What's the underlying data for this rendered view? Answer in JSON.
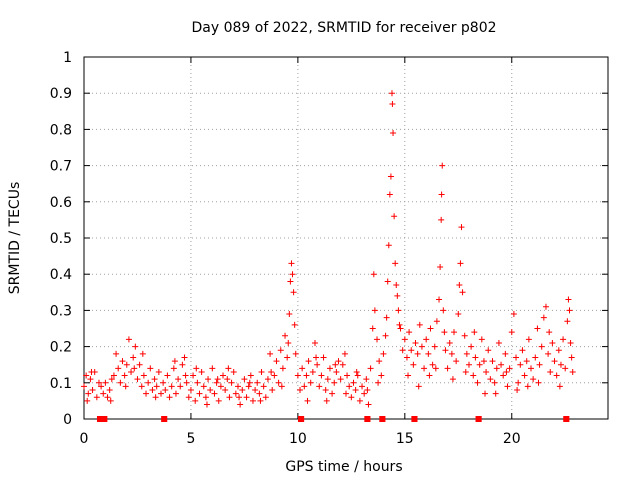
{
  "chart_data": {
    "type": "scatter",
    "title": "Day 089 of 2022, SRMTID for receiver p802",
    "xlabel": "GPS time / hours",
    "ylabel": "SRMTID / TECUs",
    "xlim": [
      0,
      24.5
    ],
    "ylim": [
      0,
      1
    ],
    "grid": true,
    "x_ticks": [
      0,
      5,
      10,
      15,
      20
    ],
    "x_tick_labels": [
      "0",
      "5",
      "10",
      "15",
      "20"
    ],
    "y_ticks": [
      0,
      0.1,
      0.2,
      0.3,
      0.4,
      0.5,
      0.6,
      0.7,
      0.8,
      0.9,
      1
    ],
    "y_tick_labels": [
      "0",
      "0.1",
      "0.2",
      "0.3",
      "0.4",
      "0.5",
      "0.6",
      "0.7",
      "0.8",
      "0.9",
      "1"
    ],
    "marker": "+",
    "color": "#ff0000",
    "baseline_segments": [
      {
        "hours": [
          0.7,
          1.0
        ]
      },
      {
        "hours": [
          3.7,
          3.8
        ]
      },
      {
        "hours": [
          10.1,
          10.2
        ]
      },
      {
        "hours": [
          13.2,
          13.3
        ]
      },
      {
        "hours": [
          13.9,
          14.0
        ]
      },
      {
        "hours": [
          15.4,
          15.5
        ]
      },
      {
        "hours": [
          18.4,
          18.5
        ]
      },
      {
        "hours": [
          22.5,
          22.6
        ]
      }
    ],
    "series": [
      {
        "name": "SRMTID",
        "points": [
          [
            0.0,
            0.09
          ],
          [
            0.1,
            0.12
          ],
          [
            0.2,
            0.07
          ],
          [
            0.3,
            0.11
          ],
          [
            0.4,
            0.08
          ],
          [
            0.5,
            0.13
          ],
          [
            0.6,
            0.06
          ],
          [
            0.7,
            0.1
          ],
          [
            0.8,
            0.09
          ],
          [
            0.9,
            0.07
          ],
          [
            1.0,
            0.1
          ],
          [
            1.1,
            0.06
          ],
          [
            1.2,
            0.08
          ],
          [
            1.3,
            0.11
          ],
          [
            1.4,
            0.12
          ],
          [
            1.5,
            0.18
          ],
          [
            1.6,
            0.14
          ],
          [
            1.7,
            0.1
          ],
          [
            1.8,
            0.16
          ],
          [
            1.9,
            0.12
          ],
          [
            2.0,
            0.15
          ],
          [
            2.1,
            0.22
          ],
          [
            2.2,
            0.13
          ],
          [
            2.3,
            0.17
          ],
          [
            2.4,
            0.2
          ],
          [
            2.5,
            0.11
          ],
          [
            2.6,
            0.15
          ],
          [
            2.7,
            0.09
          ],
          [
            2.8,
            0.12
          ],
          [
            2.9,
            0.07
          ],
          [
            3.0,
            0.1
          ],
          [
            3.1,
            0.14
          ],
          [
            3.2,
            0.08
          ],
          [
            3.3,
            0.11
          ],
          [
            3.4,
            0.09
          ],
          [
            3.5,
            0.13
          ],
          [
            3.6,
            0.07
          ],
          [
            3.7,
            0.1
          ],
          [
            3.8,
            0.08
          ],
          [
            3.9,
            0.12
          ],
          [
            4.0,
            0.06
          ],
          [
            4.1,
            0.09
          ],
          [
            4.2,
            0.14
          ],
          [
            4.3,
            0.07
          ],
          [
            4.4,
            0.11
          ],
          [
            4.5,
            0.09
          ],
          [
            4.6,
            0.15
          ],
          [
            4.7,
            0.17
          ],
          [
            4.8,
            0.1
          ],
          [
            4.9,
            0.06
          ],
          [
            5.0,
            0.08
          ],
          [
            5.1,
            0.12
          ],
          [
            5.2,
            0.05
          ],
          [
            5.3,
            0.1
          ],
          [
            5.4,
            0.07
          ],
          [
            5.5,
            0.13
          ],
          [
            5.6,
            0.09
          ],
          [
            5.7,
            0.06
          ],
          [
            5.8,
            0.11
          ],
          [
            5.9,
            0.08
          ],
          [
            6.0,
            0.14
          ],
          [
            6.1,
            0.07
          ],
          [
            6.2,
            0.1
          ],
          [
            6.3,
            0.05
          ],
          [
            6.4,
            0.09
          ],
          [
            6.5,
            0.12
          ],
          [
            6.6,
            0.08
          ],
          [
            6.7,
            0.11
          ],
          [
            6.8,
            0.06
          ],
          [
            6.9,
            0.1
          ],
          [
            7.0,
            0.13
          ],
          [
            7.1,
            0.07
          ],
          [
            7.2,
            0.09
          ],
          [
            7.3,
            0.04
          ],
          [
            7.4,
            0.08
          ],
          [
            7.5,
            0.11
          ],
          [
            7.6,
            0.06
          ],
          [
            7.7,
            0.09
          ],
          [
            7.8,
            0.12
          ],
          [
            7.9,
            0.05
          ],
          [
            8.0,
            0.08
          ],
          [
            8.1,
            0.1
          ],
          [
            8.2,
            0.07
          ],
          [
            8.3,
            0.13
          ],
          [
            8.4,
            0.09
          ],
          [
            8.5,
            0.06
          ],
          [
            8.6,
            0.11
          ],
          [
            8.7,
            0.18
          ],
          [
            8.8,
            0.08
          ],
          [
            8.9,
            0.12
          ],
          [
            9.0,
            0.16
          ],
          [
            9.1,
            0.1
          ],
          [
            9.2,
            0.19
          ],
          [
            9.3,
            0.14
          ],
          [
            9.4,
            0.23
          ],
          [
            9.5,
            0.17
          ],
          [
            9.6,
            0.29
          ],
          [
            9.65,
            0.38
          ],
          [
            9.7,
            0.43
          ],
          [
            9.75,
            0.4
          ],
          [
            9.8,
            0.35
          ],
          [
            9.85,
            0.26
          ],
          [
            9.9,
            0.18
          ],
          [
            10.0,
            0.12
          ],
          [
            10.1,
            0.08
          ],
          [
            10.2,
            0.14
          ],
          [
            10.3,
            0.09
          ],
          [
            10.4,
            0.12
          ],
          [
            10.5,
            0.16
          ],
          [
            10.6,
            0.1
          ],
          [
            10.7,
            0.13
          ],
          [
            10.8,
            0.21
          ],
          [
            10.9,
            0.15
          ],
          [
            11.0,
            0.09
          ],
          [
            11.1,
            0.12
          ],
          [
            11.2,
            0.17
          ],
          [
            11.3,
            0.08
          ],
          [
            11.4,
            0.11
          ],
          [
            11.5,
            0.14
          ],
          [
            11.6,
            0.07
          ],
          [
            11.7,
            0.1
          ],
          [
            11.8,
            0.13
          ],
          [
            11.9,
            0.16
          ],
          [
            12.0,
            0.11
          ],
          [
            12.1,
            0.15
          ],
          [
            12.2,
            0.18
          ],
          [
            12.3,
            0.12
          ],
          [
            12.4,
            0.09
          ],
          [
            12.5,
            0.06
          ],
          [
            12.6,
            0.1
          ],
          [
            12.7,
            0.08
          ],
          [
            12.8,
            0.12
          ],
          [
            12.9,
            0.05
          ],
          [
            13.0,
            0.09
          ],
          [
            13.1,
            0.07
          ],
          [
            13.2,
            0.11
          ],
          [
            13.3,
            0.04
          ],
          [
            13.4,
            0.14
          ],
          [
            13.5,
            0.25
          ],
          [
            13.55,
            0.4
          ],
          [
            13.6,
            0.3
          ],
          [
            13.7,
            0.22
          ],
          [
            13.8,
            0.16
          ],
          [
            13.9,
            0.12
          ],
          [
            14.0,
            0.18
          ],
          [
            14.1,
            0.23
          ],
          [
            14.2,
            0.38
          ],
          [
            14.25,
            0.48
          ],
          [
            14.3,
            0.62
          ],
          [
            14.35,
            0.67
          ],
          [
            14.4,
            0.9
          ],
          [
            14.42,
            0.87
          ],
          [
            14.45,
            0.79
          ],
          [
            14.5,
            0.56
          ],
          [
            14.55,
            0.43
          ],
          [
            14.6,
            0.37
          ],
          [
            14.65,
            0.34
          ],
          [
            14.7,
            0.3
          ],
          [
            14.8,
            0.25
          ],
          [
            14.9,
            0.19
          ],
          [
            15.0,
            0.22
          ],
          [
            15.1,
            0.17
          ],
          [
            15.2,
            0.24
          ],
          [
            15.3,
            0.19
          ],
          [
            15.4,
            0.15
          ],
          [
            15.5,
            0.21
          ],
          [
            15.6,
            0.18
          ],
          [
            15.7,
            0.26
          ],
          [
            15.8,
            0.2
          ],
          [
            15.9,
            0.14
          ],
          [
            16.0,
            0.22
          ],
          [
            16.1,
            0.18
          ],
          [
            16.2,
            0.25
          ],
          [
            16.3,
            0.15
          ],
          [
            16.4,
            0.2
          ],
          [
            16.5,
            0.27
          ],
          [
            16.6,
            0.33
          ],
          [
            16.65,
            0.42
          ],
          [
            16.7,
            0.55
          ],
          [
            16.72,
            0.62
          ],
          [
            16.75,
            0.7
          ],
          [
            16.8,
            0.3
          ],
          [
            16.9,
            0.19
          ],
          [
            17.0,
            0.14
          ],
          [
            17.1,
            0.21
          ],
          [
            17.2,
            0.18
          ],
          [
            17.3,
            0.24
          ],
          [
            17.4,
            0.16
          ],
          [
            17.5,
            0.29
          ],
          [
            17.55,
            0.37
          ],
          [
            17.6,
            0.43
          ],
          [
            17.65,
            0.53
          ],
          [
            17.7,
            0.35
          ],
          [
            17.8,
            0.23
          ],
          [
            17.9,
            0.18
          ],
          [
            18.0,
            0.15
          ],
          [
            18.1,
            0.2
          ],
          [
            18.2,
            0.12
          ],
          [
            18.3,
            0.17
          ],
          [
            18.4,
            0.1
          ],
          [
            18.5,
            0.15
          ],
          [
            18.6,
            0.22
          ],
          [
            18.7,
            0.16
          ],
          [
            18.8,
            0.13
          ],
          [
            18.9,
            0.19
          ],
          [
            19.0,
            0.11
          ],
          [
            19.1,
            0.16
          ],
          [
            19.2,
            0.1
          ],
          [
            19.3,
            0.14
          ],
          [
            19.4,
            0.21
          ],
          [
            19.5,
            0.15
          ],
          [
            19.6,
            0.12
          ],
          [
            19.7,
            0.18
          ],
          [
            19.8,
            0.09
          ],
          [
            19.9,
            0.14
          ],
          [
            20.0,
            0.24
          ],
          [
            20.1,
            0.29
          ],
          [
            20.2,
            0.17
          ],
          [
            20.3,
            0.1
          ],
          [
            20.4,
            0.15
          ],
          [
            20.5,
            0.19
          ],
          [
            20.6,
            0.12
          ],
          [
            20.7,
            0.16
          ],
          [
            20.8,
            0.22
          ],
          [
            20.9,
            0.14
          ],
          [
            21.0,
            0.11
          ],
          [
            21.1,
            0.17
          ],
          [
            21.2,
            0.25
          ],
          [
            21.3,
            0.15
          ],
          [
            21.4,
            0.2
          ],
          [
            21.5,
            0.28
          ],
          [
            21.6,
            0.31
          ],
          [
            21.7,
            0.18
          ],
          [
            21.8,
            0.13
          ],
          [
            21.9,
            0.21
          ],
          [
            22.0,
            0.16
          ],
          [
            22.1,
            0.12
          ],
          [
            22.2,
            0.19
          ],
          [
            22.3,
            0.15
          ],
          [
            22.4,
            0.22
          ],
          [
            22.5,
            0.14
          ],
          [
            22.6,
            0.27
          ],
          [
            22.65,
            0.33
          ],
          [
            22.7,
            0.3
          ],
          [
            22.75,
            0.21
          ],
          [
            22.8,
            0.17
          ],
          [
            0.15,
            0.05
          ],
          [
            0.35,
            0.13
          ],
          [
            1.25,
            0.05
          ],
          [
            1.95,
            0.09
          ],
          [
            2.35,
            0.14
          ],
          [
            2.75,
            0.18
          ],
          [
            3.35,
            0.06
          ],
          [
            4.25,
            0.16
          ],
          [
            4.75,
            0.12
          ],
          [
            5.25,
            0.14
          ],
          [
            5.75,
            0.04
          ],
          [
            6.25,
            0.11
          ],
          [
            6.75,
            0.14
          ],
          [
            7.25,
            0.06
          ],
          [
            7.75,
            0.1
          ],
          [
            8.25,
            0.05
          ],
          [
            8.75,
            0.13
          ],
          [
            9.25,
            0.09
          ],
          [
            9.55,
            0.21
          ],
          [
            10.45,
            0.05
          ],
          [
            10.85,
            0.17
          ],
          [
            11.35,
            0.05
          ],
          [
            11.75,
            0.15
          ],
          [
            12.25,
            0.07
          ],
          [
            12.75,
            0.13
          ],
          [
            13.25,
            0.08
          ],
          [
            13.75,
            0.1
          ],
          [
            14.15,
            0.28
          ],
          [
            14.75,
            0.26
          ],
          [
            15.15,
            0.12
          ],
          [
            15.65,
            0.09
          ],
          [
            16.15,
            0.12
          ],
          [
            16.45,
            0.14
          ],
          [
            16.85,
            0.24
          ],
          [
            17.25,
            0.11
          ],
          [
            17.85,
            0.13
          ],
          [
            18.25,
            0.24
          ],
          [
            18.75,
            0.07
          ],
          [
            19.25,
            0.07
          ],
          [
            19.75,
            0.13
          ],
          [
            20.25,
            0.08
          ],
          [
            20.75,
            0.09
          ],
          [
            21.25,
            0.1
          ],
          [
            21.75,
            0.24
          ],
          [
            22.25,
            0.09
          ],
          [
            22.85,
            0.13
          ]
        ]
      }
    ]
  }
}
